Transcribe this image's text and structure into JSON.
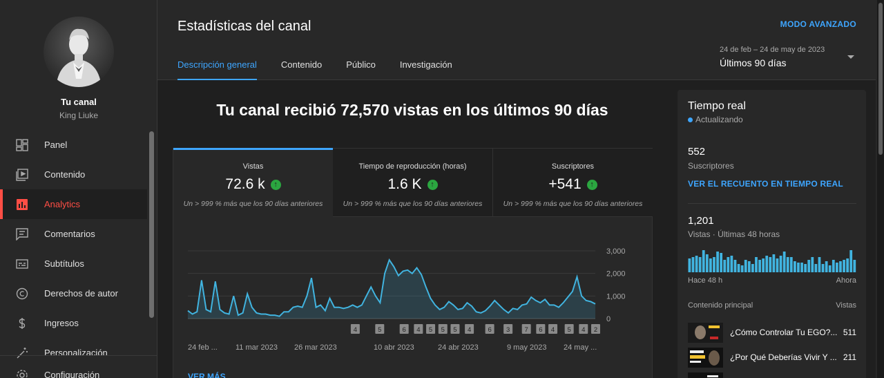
{
  "sidebar": {
    "channel_label": "Tu canal",
    "channel_name": "King Liuke",
    "items": [
      {
        "label": "Panel",
        "icon": "dashboard-icon",
        "active": false
      },
      {
        "label": "Contenido",
        "icon": "content-icon",
        "active": false
      },
      {
        "label": "Analytics",
        "icon": "analytics-icon",
        "active": true
      },
      {
        "label": "Comentarios",
        "icon": "comments-icon",
        "active": false
      },
      {
        "label": "Subtítulos",
        "icon": "subtitles-icon",
        "active": false
      },
      {
        "label": "Derechos de autor",
        "icon": "copyright-icon",
        "active": false
      },
      {
        "label": "Ingresos",
        "icon": "dollar-icon",
        "active": false
      },
      {
        "label": "Personalización",
        "icon": "magic-wand-icon",
        "active": false
      },
      {
        "label": "Configuración",
        "icon": "gear-icon",
        "active": false
      }
    ]
  },
  "header": {
    "title": "Estadísticas del canal",
    "advanced_mode": "MODO AVANZADO",
    "tabs": [
      {
        "label": "Descripción general",
        "active": true
      },
      {
        "label": "Contenido",
        "active": false
      },
      {
        "label": "Público",
        "active": false
      },
      {
        "label": "Investigación",
        "active": false
      }
    ],
    "date_range": "24 de feb – 24 de may de 2023",
    "date_period": "Últimos 90 días"
  },
  "main": {
    "headline": "Tu canal recibió 72,570 vistas en los últimos 90 días",
    "metrics": [
      {
        "label": "Vistas",
        "value": "72.6 k",
        "sub": "Un > 999 % más que los 90 días anteriores",
        "active": true
      },
      {
        "label": "Tiempo de reproducción (horas)",
        "value": "1.6 K",
        "sub": "Un > 999 % más que los 90 días anteriores",
        "active": false
      },
      {
        "label": "Suscriptores",
        "value": "+541",
        "sub": "Un > 999 % más que los 90 días anteriores",
        "active": false
      }
    ],
    "see_more": "VER MÁS"
  },
  "chart_data": {
    "type": "area",
    "title": "",
    "xlabel": "",
    "ylabel": "",
    "ylim": [
      0,
      3000
    ],
    "y_ticks": [
      "3,000",
      "2,000",
      "1,000",
      "0"
    ],
    "x_tick_labels": [
      "24 feb ...",
      "11 mar 2023",
      "26 mar 2023",
      "10 abr 2023",
      "24 abr 2023",
      "9 may 2023",
      "24 may ..."
    ],
    "grid": true,
    "series": [
      {
        "values": [
          350,
          200,
          300,
          1700,
          400,
          300,
          1650,
          400,
          250,
          200,
          1000,
          150,
          250,
          1100,
          500,
          250,
          200,
          200,
          150,
          150,
          100,
          300,
          300,
          500,
          550,
          500,
          1000,
          1800,
          500,
          600,
          350,
          900,
          500,
          500,
          450,
          500,
          600,
          500,
          600,
          1000,
          1400,
          1000,
          700,
          2000,
          2600,
          2300,
          1900,
          2100,
          2150,
          2000,
          2250,
          1950,
          1400,
          900,
          600,
          400,
          500,
          750,
          600,
          400,
          450,
          700,
          550,
          300,
          250,
          350,
          550,
          800,
          600,
          400,
          250,
          450,
          400,
          600,
          650,
          950,
          800,
          700,
          850,
          600,
          600,
          500,
          700,
          950,
          1200,
          1850,
          1000,
          800,
          750,
          650
        ]
      }
    ],
    "markers": [
      "4",
      "5",
      "6",
      "4",
      "5",
      "5",
      "5",
      "4",
      "6",
      "3",
      "7",
      "6",
      "4",
      "5",
      "4",
      "2"
    ]
  },
  "realtime": {
    "title": "Tiempo real",
    "status": "Actualizando",
    "subscribers_value": "552",
    "subscribers_label": "Suscriptores",
    "realtime_link": "VER EL RECUENTO EN TIEMPO REAL",
    "views_value": "1,201",
    "views_label": "Vistas · Últimas 48 horas",
    "axis_left": "Hace 48 h",
    "axis_right": "Ahora",
    "bars": [
      0.5,
      0.55,
      0.6,
      0.55,
      0.8,
      0.65,
      0.5,
      0.55,
      0.75,
      0.7,
      0.45,
      0.55,
      0.6,
      0.45,
      0.3,
      0.25,
      0.45,
      0.4,
      0.3,
      0.55,
      0.45,
      0.5,
      0.6,
      0.55,
      0.65,
      0.5,
      0.6,
      0.75,
      0.55,
      0.55,
      0.4,
      0.35,
      0.35,
      0.3,
      0.45,
      0.55,
      0.3,
      0.55,
      0.3,
      0.4,
      0.25,
      0.45,
      0.35,
      0.4,
      0.45,
      0.5,
      0.8,
      0.45
    ],
    "top_header_left": "Contenido principal",
    "top_header_right": "Vistas",
    "videos": [
      {
        "title": "¿Cómo Controlar Tu EGO?...",
        "views": "511",
        "thumb": "video-thumbnail-ego"
      },
      {
        "title": "¿Por Qué Deberías Vivir Y ...",
        "views": "211",
        "thumb": "video-thumbnail-vivir"
      },
      {
        "title": "",
        "views": "",
        "thumb": "video-thumbnail-third"
      }
    ]
  },
  "colors": {
    "accent_blue": "#3ea6ff",
    "active_red": "#ff4e45",
    "chart_line": "#41b4e0",
    "positive_green": "#2ba640"
  }
}
